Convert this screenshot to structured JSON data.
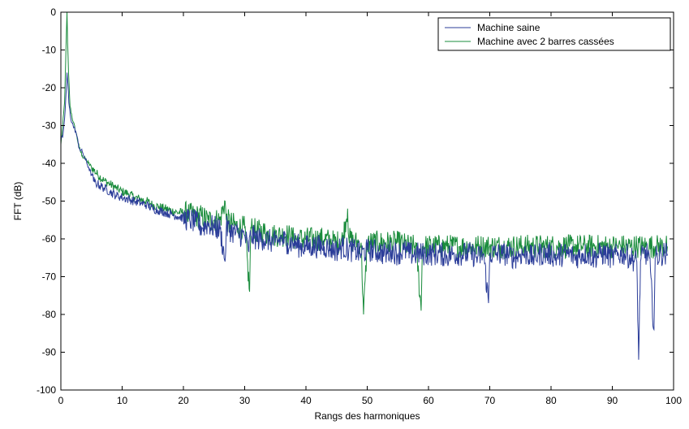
{
  "chart_data": {
    "type": "line",
    "title": "",
    "xlabel": "Rangs des harmoniques",
    "ylabel": "FFT (dB)",
    "xlim": [
      0,
      100
    ],
    "ylim": [
      -100,
      0
    ],
    "xticks": [
      0,
      10,
      20,
      30,
      40,
      50,
      60,
      70,
      80,
      90,
      100
    ],
    "yticks": [
      0,
      -10,
      -20,
      -30,
      -40,
      -50,
      -60,
      -70,
      -80,
      -90,
      -100
    ],
    "grid": false,
    "legend_position": "top-right",
    "series": [
      {
        "name": "Machine saine",
        "color": "#2b3d99",
        "points": [
          [
            0,
            -34
          ],
          [
            0.3,
            -33
          ],
          [
            0.5,
            -30
          ],
          [
            0.7,
            -26
          ],
          [
            0.9,
            -20
          ],
          [
            1.0,
            -16
          ],
          [
            1.15,
            -19
          ],
          [
            1.3,
            -24
          ],
          [
            1.6,
            -28
          ],
          [
            2.0,
            -30
          ],
          [
            2.5,
            -32
          ],
          [
            3.0,
            -36
          ],
          [
            3.5,
            -37
          ],
          [
            4.0,
            -39
          ],
          [
            4.5,
            -41
          ],
          [
            5,
            -43
          ],
          [
            5.5,
            -45
          ],
          [
            6,
            -45.5
          ],
          [
            7,
            -46.5
          ],
          [
            8,
            -47.5
          ],
          [
            9,
            -48.5
          ],
          [
            10,
            -49
          ],
          [
            11,
            -49.5
          ],
          [
            12,
            -50
          ],
          [
            13,
            -50.5
          ],
          [
            14,
            -51
          ],
          [
            15,
            -52
          ],
          [
            16,
            -52.5
          ],
          [
            17,
            -53
          ],
          [
            18,
            -53.5
          ],
          [
            19,
            -54
          ],
          [
            20,
            -54.5
          ],
          [
            21,
            -55
          ],
          [
            22,
            -55.5
          ],
          [
            23,
            -57
          ],
          [
            24,
            -56
          ],
          [
            25,
            -57
          ],
          [
            26,
            -57.5
          ],
          [
            26.8,
            -66
          ],
          [
            27,
            -57
          ],
          [
            28,
            -58
          ],
          [
            29,
            -59
          ],
          [
            30,
            -59
          ],
          [
            30.6,
            -63
          ],
          [
            31,
            -59
          ],
          [
            32,
            -60
          ],
          [
            33,
            -60
          ],
          [
            34,
            -60.5
          ],
          [
            35,
            -61
          ],
          [
            36,
            -60
          ],
          [
            37,
            -61
          ],
          [
            38,
            -61
          ],
          [
            39,
            -62
          ],
          [
            40,
            -62
          ],
          [
            41,
            -62
          ],
          [
            42,
            -62
          ],
          [
            43,
            -62
          ],
          [
            44,
            -62.5
          ],
          [
            45,
            -63
          ],
          [
            46,
            -62
          ],
          [
            47,
            -63
          ],
          [
            48,
            -63
          ],
          [
            49,
            -64
          ],
          [
            50,
            -63
          ],
          [
            51,
            -63
          ],
          [
            52,
            -63.5
          ],
          [
            53,
            -64
          ],
          [
            54,
            -63
          ],
          [
            55,
            -64
          ],
          [
            56,
            -63
          ],
          [
            57,
            -64
          ],
          [
            58,
            -64
          ],
          [
            59,
            -64
          ],
          [
            60,
            -64
          ],
          [
            61,
            -64
          ],
          [
            62,
            -64
          ],
          [
            63,
            -64.5
          ],
          [
            64,
            -64
          ],
          [
            65,
            -64
          ],
          [
            66,
            -64
          ],
          [
            67,
            -64
          ],
          [
            68,
            -65
          ],
          [
            69,
            -64
          ],
          [
            69.8,
            -77
          ],
          [
            70,
            -64
          ],
          [
            71,
            -64
          ],
          [
            72,
            -64
          ],
          [
            73,
            -64
          ],
          [
            74,
            -65
          ],
          [
            75,
            -64
          ],
          [
            76,
            -64
          ],
          [
            77,
            -65
          ],
          [
            78,
            -64
          ],
          [
            79,
            -64
          ],
          [
            80,
            -64
          ],
          [
            81,
            -65
          ],
          [
            82,
            -64
          ],
          [
            83,
            -64
          ],
          [
            84,
            -65
          ],
          [
            85,
            -64
          ],
          [
            86,
            -64
          ],
          [
            87,
            -65
          ],
          [
            88,
            -64
          ],
          [
            89,
            -64
          ],
          [
            90,
            -65
          ],
          [
            91,
            -64
          ],
          [
            92,
            -64
          ],
          [
            93,
            -65
          ],
          [
            94,
            -66
          ],
          [
            94.3,
            -92
          ],
          [
            94.6,
            -66
          ],
          [
            95,
            -64
          ],
          [
            96,
            -64
          ],
          [
            96.8,
            -84
          ],
          [
            97,
            -65
          ],
          [
            98,
            -64
          ],
          [
            99,
            -64
          ]
        ]
      },
      {
        "name": "Machine avec 2 barres cassées",
        "color": "#1a8c3c",
        "points": [
          [
            0,
            -35
          ],
          [
            0.3,
            -30
          ],
          [
            0.6,
            -24
          ],
          [
            0.8,
            -12
          ],
          [
            1.0,
            0
          ],
          [
            1.1,
            -8
          ],
          [
            1.25,
            -16
          ],
          [
            1.5,
            -25
          ],
          [
            2.0,
            -29
          ],
          [
            2.5,
            -32
          ],
          [
            3.0,
            -36
          ],
          [
            3.5,
            -38
          ],
          [
            4.0,
            -39
          ],
          [
            4.5,
            -40
          ],
          [
            5,
            -41
          ],
          [
            6,
            -43
          ],
          [
            7,
            -44.5
          ],
          [
            8,
            -45.5
          ],
          [
            9,
            -46.5
          ],
          [
            10,
            -47.5
          ],
          [
            11,
            -48
          ],
          [
            12,
            -49
          ],
          [
            13,
            -49.5
          ],
          [
            14,
            -50
          ],
          [
            15,
            -51
          ],
          [
            16,
            -51.5
          ],
          [
            17,
            -52
          ],
          [
            18,
            -52.5
          ],
          [
            19,
            -53
          ],
          [
            20,
            -53
          ],
          [
            21,
            -53.5
          ],
          [
            22,
            -54
          ],
          [
            23,
            -54
          ],
          [
            24,
            -55
          ],
          [
            25,
            -55
          ],
          [
            26,
            -55
          ],
          [
            26.8,
            -50
          ],
          [
            27,
            -55
          ],
          [
            28,
            -56
          ],
          [
            29,
            -57
          ],
          [
            30,
            -57
          ],
          [
            30.8,
            -74
          ],
          [
            31,
            -57
          ],
          [
            32,
            -58
          ],
          [
            33,
            -58
          ],
          [
            34,
            -59
          ],
          [
            35,
            -59
          ],
          [
            36,
            -59
          ],
          [
            37,
            -59
          ],
          [
            38,
            -60
          ],
          [
            39,
            -60
          ],
          [
            40,
            -60
          ],
          [
            41,
            -60
          ],
          [
            42,
            -60
          ],
          [
            43,
            -60
          ],
          [
            44,
            -60.5
          ],
          [
            45,
            -61
          ],
          [
            46,
            -60
          ],
          [
            46.8,
            -52
          ],
          [
            47,
            -60
          ],
          [
            48,
            -61
          ],
          [
            49,
            -61
          ],
          [
            49.4,
            -80
          ],
          [
            50,
            -61
          ],
          [
            51,
            -61
          ],
          [
            52,
            -61
          ],
          [
            53,
            -61
          ],
          [
            54,
            -61
          ],
          [
            55,
            -61
          ],
          [
            56,
            -61.5
          ],
          [
            57,
            -62
          ],
          [
            58,
            -62
          ],
          [
            58.8,
            -79
          ],
          [
            59,
            -62
          ],
          [
            60,
            -62
          ],
          [
            61,
            -62
          ],
          [
            62,
            -62
          ],
          [
            63,
            -62
          ],
          [
            64,
            -62
          ],
          [
            65,
            -62
          ],
          [
            66,
            -62
          ],
          [
            67,
            -62
          ],
          [
            68,
            -62
          ],
          [
            69,
            -62
          ],
          [
            70,
            -62
          ],
          [
            71,
            -62
          ],
          [
            72,
            -62
          ],
          [
            73,
            -62
          ],
          [
            74,
            -62
          ],
          [
            75,
            -62
          ],
          [
            76,
            -62
          ],
          [
            77,
            -62
          ],
          [
            78,
            -62
          ],
          [
            79,
            -62
          ],
          [
            80,
            -62
          ],
          [
            81,
            -62
          ],
          [
            82,
            -62
          ],
          [
            83,
            -62
          ],
          [
            84,
            -62
          ],
          [
            85,
            -62
          ],
          [
            86,
            -62
          ],
          [
            87,
            -62
          ],
          [
            88,
            -62
          ],
          [
            89,
            -62
          ],
          [
            90,
            -62
          ],
          [
            91,
            -62
          ],
          [
            92,
            -62
          ],
          [
            93,
            -62
          ],
          [
            94,
            -62
          ],
          [
            95,
            -62
          ],
          [
            96,
            -62
          ],
          [
            97,
            -62
          ],
          [
            98,
            -62
          ],
          [
            99,
            -62
          ]
        ]
      }
    ]
  }
}
